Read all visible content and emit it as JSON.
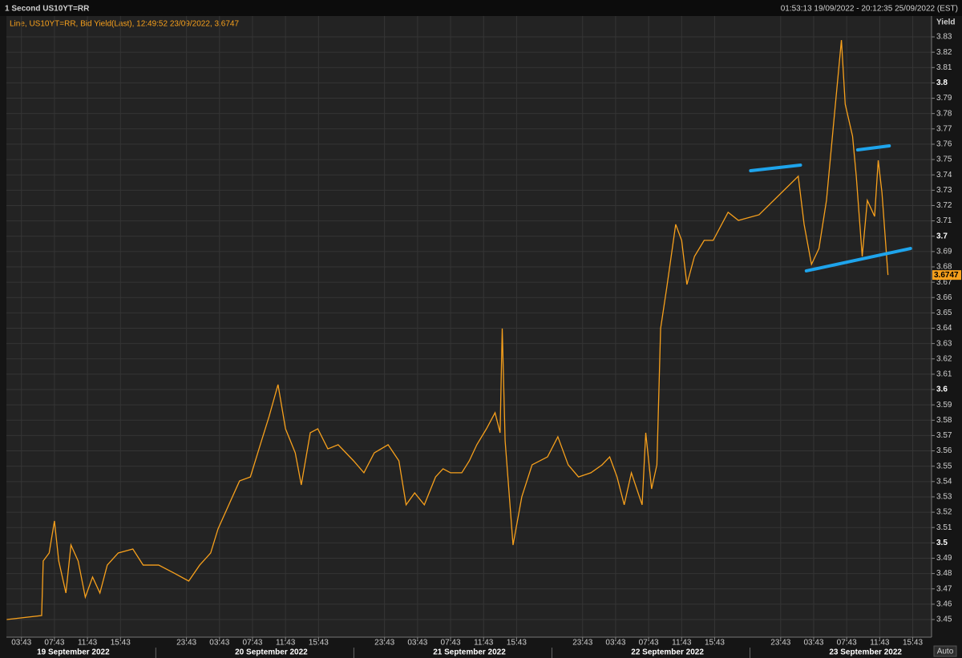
{
  "chart_data": {
    "type": "line",
    "title": "1 Second US10YT=RR",
    "date_range": "01:53:13 19/09/2022 - 20:12:35 25/09/2022 (EST)",
    "legend_text": "Line, US10YT=RR, Bid Yield(Last),  12:49:52 23/09/2022, 3.6747",
    "y_label": "Yield",
    "button_label": "Auto",
    "last_value": 3.6747,
    "grid": true,
    "dates": [
      "19 September 2022",
      "20 September 2022",
      "21 September 2022",
      "22 September 2022",
      "23 September 2022"
    ],
    "x": [
      1.94,
      6.17,
      6.36,
      7.08,
      7.72,
      8.24,
      9.11,
      9.72,
      10.59,
      11.46,
      12.34,
      13.23,
      14.12,
      15.45,
      17.22,
      18.47,
      20.35,
      22.22,
      23.99,
      25.32,
      26.65,
      27.54,
      28.85,
      30.15,
      31.46,
      32.81,
      33.72,
      34.81,
      35.72,
      36.9,
      37.63,
      38.72,
      39.63,
      40.85,
      42.1,
      43.97,
      45.22,
      46.47,
      48.15,
      49.46,
      50.33,
      51.37,
      52.54,
      53.9,
      54.81,
      55.72,
      57.08,
      57.99,
      58.9,
      60.07,
      61.11,
      61.72,
      61.98,
      62.33,
      63.29,
      64.35,
      65.6,
      67.47,
      68.72,
      69.97,
      71.22,
      72.72,
      74.08,
      75,
      75.89,
      76.76,
      77.63,
      78.93,
      79.37,
      80.08,
      80.72,
      81.17,
      81.9,
      83,
      83.72,
      84.36,
      85.27,
      86.45,
      87.54,
      89.35,
      90.6,
      93.1,
      97.85,
      98.56,
      99.45,
      100.36,
      101.27,
      102.17,
      103.08,
      103.54,
      104.43,
      104.88,
      105.6,
      106.22,
      107.1,
      107.54,
      107.99,
      108.72
    ],
    "series": [
      {
        "name": "US10YT=RR",
        "color": "#f7a01c",
        "values": [
          3.45,
          3.4526,
          3.4882,
          3.4934,
          3.5143,
          3.4882,
          3.4673,
          3.4986,
          3.4882,
          3.4646,
          3.4777,
          3.4673,
          3.4855,
          3.4934,
          3.496,
          3.4855,
          3.4855,
          3.4803,
          3.4751,
          3.4855,
          3.4934,
          3.5091,
          3.5248,
          3.5404,
          3.543,
          3.5666,
          3.5823,
          3.6032,
          3.5744,
          3.5587,
          3.5378,
          3.5718,
          3.5744,
          3.5613,
          3.564,
          3.5535,
          3.5457,
          3.5587,
          3.564,
          3.5535,
          3.5248,
          3.5326,
          3.5248,
          3.543,
          3.5483,
          3.5457,
          3.5457,
          3.5535,
          3.564,
          3.5744,
          3.5849,
          3.5718,
          3.6398,
          3.5666,
          3.4986,
          3.53,
          3.5509,
          3.5561,
          3.5692,
          3.5509,
          3.543,
          3.5457,
          3.5509,
          3.5561,
          3.543,
          3.5248,
          3.5457,
          3.5248,
          3.5718,
          3.5352,
          3.5509,
          3.6398,
          3.6659,
          3.7077,
          3.6973,
          3.6685,
          3.6868,
          3.6973,
          3.6973,
          3.7156,
          3.7103,
          3.714,
          3.7391,
          3.7077,
          3.6816,
          3.692,
          3.7234,
          3.7757,
          3.8279,
          3.7861,
          3.7652,
          3.7391,
          3.6868,
          3.7234,
          3.7129,
          3.7495,
          3.7286,
          3.6747
        ]
      }
    ],
    "annotation_lines": [
      {
        "color": "#1ea4ec",
        "x": [
          92.08,
          98.12
        ],
        "y": [
          3.7427,
          3.7464
        ]
      },
      {
        "color": "#1ea4ec",
        "x": [
          105.05,
          108.88
        ],
        "y": [
          3.7563,
          3.7589
        ]
      },
      {
        "color": "#1ea4ec",
        "x": [
          98.83,
          111.45
        ],
        "y": [
          3.6774,
          3.692
        ]
      }
    ],
    "xlim": [
      1.9,
      114
    ],
    "xticks": [
      {
        "value": 3.72,
        "label": "03:43"
      },
      {
        "value": 7.72,
        "label": "07:43"
      },
      {
        "value": 11.72,
        "label": "11:43"
      },
      {
        "value": 15.72,
        "label": "15:43"
      },
      {
        "value": 23.72,
        "label": "23:43"
      },
      {
        "value": 27.72,
        "label": "03:43"
      },
      {
        "value": 31.72,
        "label": "07:43"
      },
      {
        "value": 35.72,
        "label": "11:43"
      },
      {
        "value": 39.72,
        "label": "15:43"
      },
      {
        "value": 47.72,
        "label": "23:43"
      },
      {
        "value": 51.72,
        "label": "03:43"
      },
      {
        "value": 55.72,
        "label": "07:43"
      },
      {
        "value": 59.72,
        "label": "11:43"
      },
      {
        "value": 63.72,
        "label": "15:43"
      },
      {
        "value": 71.72,
        "label": "23:43"
      },
      {
        "value": 75.72,
        "label": "03:43"
      },
      {
        "value": 79.72,
        "label": "07:43"
      },
      {
        "value": 83.72,
        "label": "11:43"
      },
      {
        "value": 87.72,
        "label": "15:43"
      },
      {
        "value": 95.72,
        "label": "23:43"
      },
      {
        "value": 99.72,
        "label": "03:43"
      },
      {
        "value": 103.72,
        "label": "07:43"
      },
      {
        "value": 107.72,
        "label": "11:43"
      },
      {
        "value": 111.72,
        "label": "15:43"
      }
    ],
    "ylim": [
      3.4385,
      3.8436
    ],
    "yticks": [
      3.45,
      3.46,
      3.47,
      3.48,
      3.49,
      3.5,
      3.51,
      3.52,
      3.53,
      3.54,
      3.55,
      3.56,
      3.57,
      3.58,
      3.59,
      3.6,
      3.61,
      3.62,
      3.63,
      3.64,
      3.65,
      3.66,
      3.67,
      3.68,
      3.69,
      3.7,
      3.71,
      3.72,
      3.73,
      3.74,
      3.75,
      3.76,
      3.77,
      3.78,
      3.79,
      3.8,
      3.81,
      3.82,
      3.83
    ]
  }
}
